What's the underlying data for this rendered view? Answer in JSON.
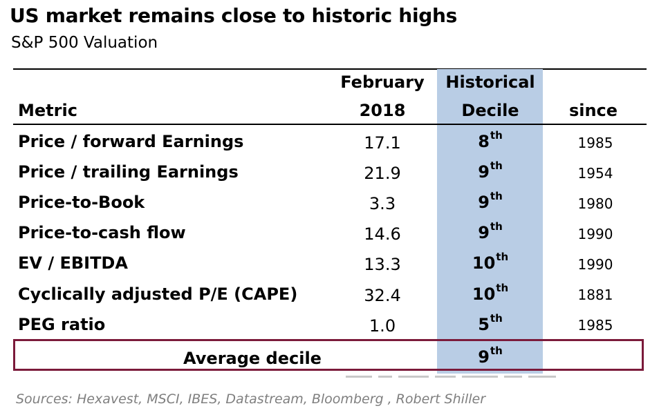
{
  "title": "US market remains close to historic highs",
  "subtitle": "S&P 500 Valuation",
  "headers": {
    "metric": "Metric",
    "february_line1": "February",
    "february_line2": "2018",
    "historical_line1": "Historical",
    "historical_line2": "Decile",
    "since": "since"
  },
  "rows": [
    {
      "metric": "Price / forward Earnings",
      "value": "17.1",
      "decile": "8",
      "suffix": "th",
      "since": "1985"
    },
    {
      "metric": "Price / trailing Earnings",
      "value": "21.9",
      "decile": "9",
      "suffix": "th",
      "since": "1954"
    },
    {
      "metric": "Price-to-Book",
      "value": "3.3",
      "decile": "9",
      "suffix": "th",
      "since": "1980"
    },
    {
      "metric": "Price-to-cash flow",
      "value": "14.6",
      "decile": "9",
      "suffix": "th",
      "since": "1990"
    },
    {
      "metric": "EV / EBITDA",
      "value": "13.3",
      "decile": "10",
      "suffix": "th",
      "since": "1990"
    },
    {
      "metric": "Cyclically adjusted P/E (CAPE)",
      "value": "32.4",
      "decile": "10",
      "suffix": "th",
      "since": "1881"
    },
    {
      "metric": "PEG ratio",
      "value": "1.0",
      "decile": "5",
      "suffix": "th",
      "since": "1985"
    }
  ],
  "average": {
    "label": "Average decile",
    "decile": "9",
    "suffix": "th"
  },
  "sources": "Sources: Hexavest, MSCI, IBES, Datastream, Bloomberg , Robert Shiller",
  "colors": {
    "highlight_column": "#b9cde5",
    "average_box_border": "#7b1a3a",
    "sources_text": "#7f7f7f"
  }
}
